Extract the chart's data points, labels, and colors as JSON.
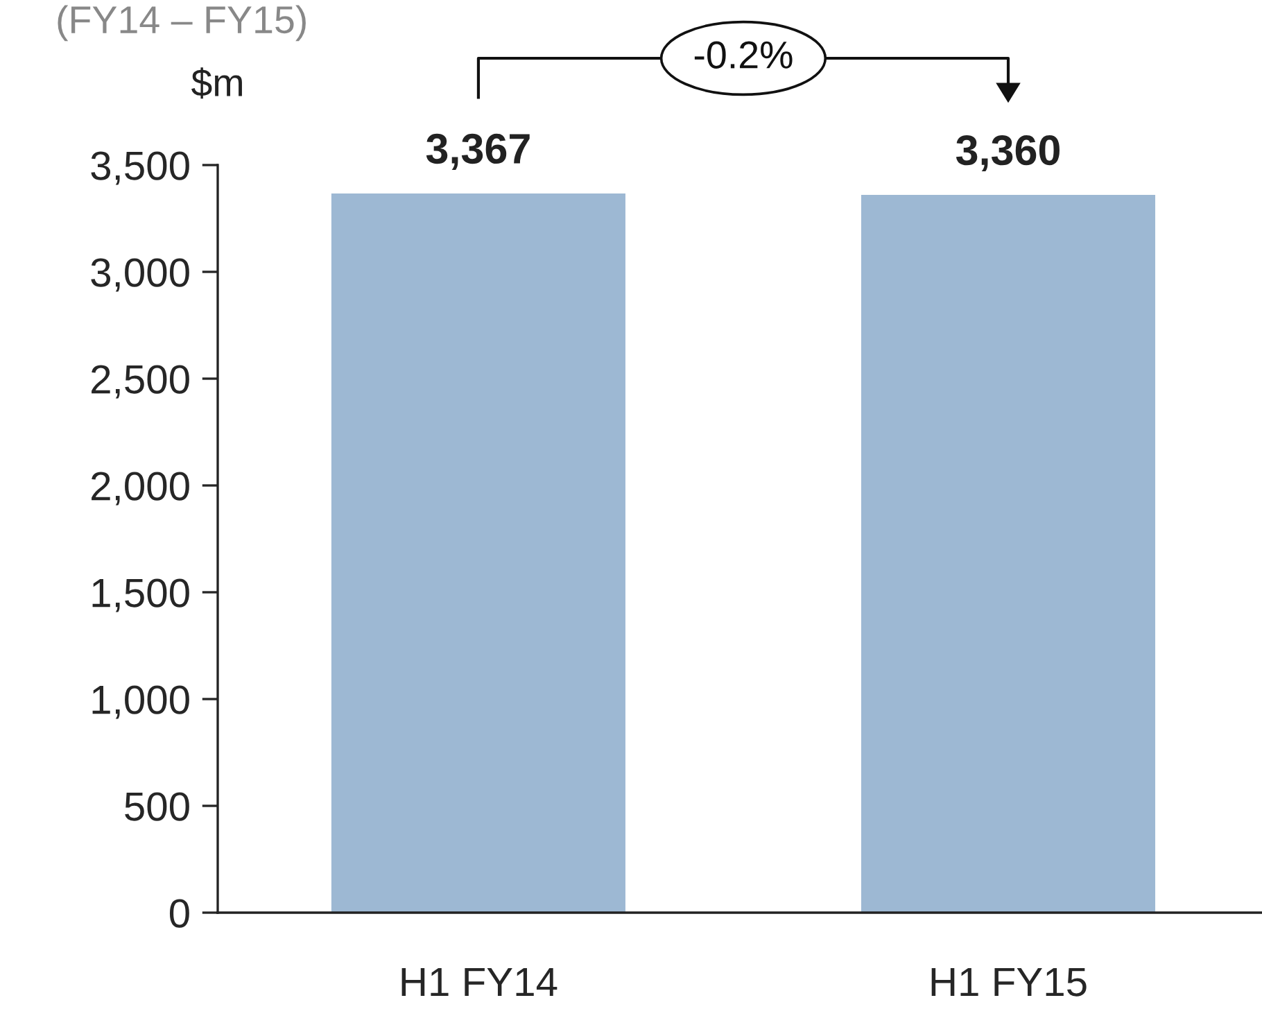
{
  "chart_data": {
    "type": "bar",
    "title": "(FY14 – FY15)",
    "ylabel": "$m",
    "categories": [
      "H1 FY14",
      "H1 FY15"
    ],
    "values": [
      3367,
      3360
    ],
    "color": "#9db8d3",
    "value_labels": [
      "3,367",
      "3,360"
    ],
    "annotations": [
      "-0.2%"
    ],
    "ylim": [
      0,
      3500
    ],
    "yticks": [
      {
        "value": 0,
        "label": "0"
      },
      {
        "value": 500,
        "label": "500"
      },
      {
        "value": 1000,
        "label": "1,000"
      },
      {
        "value": 1500,
        "label": "1,500"
      },
      {
        "value": 2000,
        "label": "2,000"
      },
      {
        "value": 2500,
        "label": "2,500"
      },
      {
        "value": 3000,
        "label": "3,000"
      },
      {
        "value": 3500,
        "label": "3,500"
      }
    ],
    "grid": false,
    "legend": false
  }
}
